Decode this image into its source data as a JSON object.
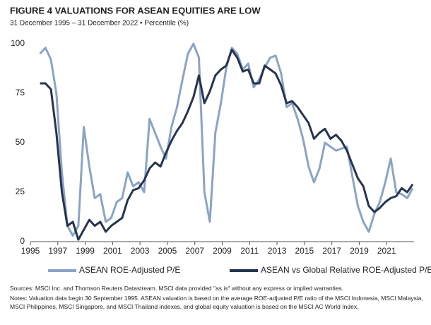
{
  "chart_data": {
    "type": "line",
    "title": "FIGURE 4   VALUATIONS FOR ASEAN EQUITIES ARE LOW",
    "subtitle": "31 December 1995 – 31 December 2022 • Percentile (%)",
    "x": [
      1995.7,
      1996.1,
      1996.5,
      1996.9,
      1997.3,
      1997.7,
      1998.1,
      1998.5,
      1998.9,
      1999.3,
      1999.7,
      2000.1,
      2000.5,
      2000.9,
      2001.3,
      2001.7,
      2002.1,
      2002.5,
      2002.9,
      2003.3,
      2003.7,
      2004.1,
      2004.5,
      2004.9,
      2005.3,
      2005.7,
      2006.1,
      2006.5,
      2006.9,
      2007.3,
      2007.7,
      2008.1,
      2008.5,
      2008.9,
      2009.3,
      2009.7,
      2010.1,
      2010.5,
      2010.9,
      2011.3,
      2011.7,
      2012.1,
      2012.5,
      2012.9,
      2013.3,
      2013.7,
      2014.1,
      2014.5,
      2014.9,
      2015.3,
      2015.7,
      2016.1,
      2016.5,
      2016.9,
      2017.3,
      2017.7,
      2018.1,
      2018.5,
      2018.9,
      2019.3,
      2019.7,
      2020.1,
      2020.5,
      2020.9,
      2021.3,
      2021.7,
      2022.1,
      2022.5,
      2022.9
    ],
    "series": [
      {
        "name": "ASEAN ROE-Adjusted P/E",
        "color": "#8aa4c6",
        "values": [
          95,
          98,
          92,
          75,
          35,
          8,
          3,
          8,
          58,
          38,
          22,
          24,
          10,
          12,
          20,
          22,
          35,
          28,
          30,
          25,
          62,
          55,
          48,
          42,
          58,
          68,
          82,
          95,
          100,
          93,
          25,
          10,
          55,
          70,
          88,
          98,
          95,
          87,
          90,
          78,
          82,
          88,
          93,
          94,
          85,
          68,
          70,
          62,
          52,
          38,
          30,
          37,
          50,
          48,
          46,
          47,
          48,
          33,
          18,
          10,
          5,
          14,
          20,
          30,
          42,
          25,
          24,
          22,
          27
        ]
      },
      {
        "name": "ASEAN vs Global Relative ROE-Adjusted P/E",
        "color": "#26344f",
        "values": [
          80,
          80,
          77,
          55,
          25,
          8,
          10,
          1,
          6,
          11,
          8,
          10,
          5,
          8,
          10,
          12,
          21,
          26,
          27,
          31,
          37,
          40,
          38,
          45,
          51,
          56,
          60,
          66,
          73,
          84,
          70,
          76,
          84,
          87,
          89,
          97,
          93,
          86,
          87,
          80,
          80,
          89,
          87,
          85,
          79,
          70,
          71,
          68,
          64,
          60,
          52,
          55,
          57,
          52,
          54,
          51,
          46,
          39,
          32,
          28,
          18,
          15,
          17,
          20,
          22,
          23,
          27,
          25,
          29
        ]
      }
    ],
    "xlim": [
      1995,
      2023
    ],
    "xticks": [
      1995,
      1997,
      1999,
      2001,
      2003,
      2005,
      2007,
      2009,
      2011,
      2013,
      2015,
      2017,
      2019,
      2021
    ],
    "ylim": [
      0,
      100
    ],
    "yticks": [
      0,
      25,
      50,
      75,
      100
    ],
    "grid": false,
    "notes": [
      "Sources: MSCI Inc. and Thomson Reuters Datastream. MSCI data provided \"as is\" without any express or implied warranties.",
      "Notes: Valuation data begin 30 September 1995. ASEAN valuation is based on the average ROE-adjusted P/E ratio of the MSCI Indonesia, MSCI Malaysia, MSCI Philippines, MSCI Singapore, and MSCI Thailand indexes, and global equity valuation is based on the MSCI AC World Index."
    ]
  }
}
